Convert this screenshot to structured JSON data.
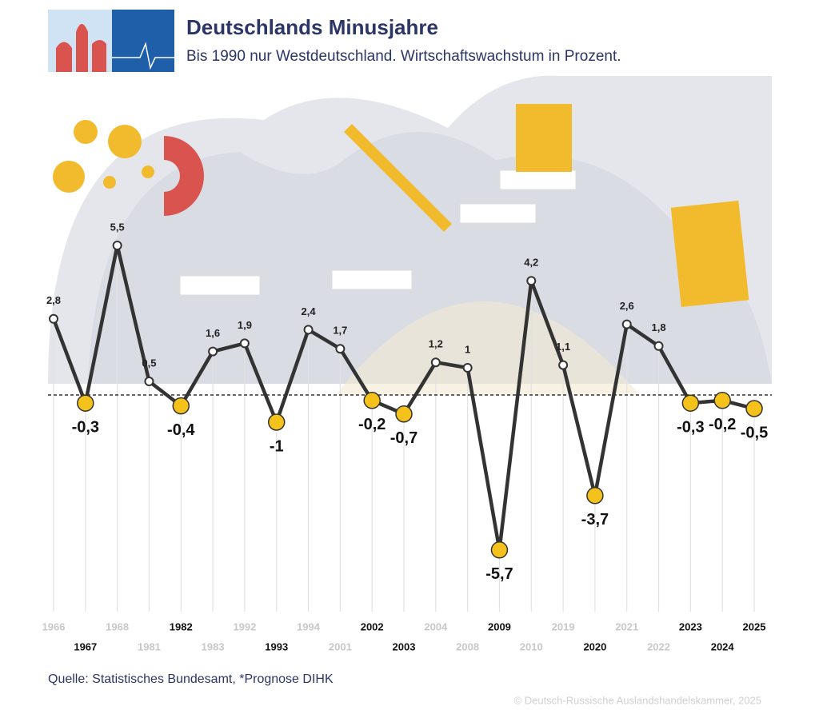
{
  "chart_data": {
    "type": "line",
    "title": "Deutschlands Minusjahre",
    "subtitle": "Bis 1990 nur Westdeutschland. Wirtschaftswachstum in Prozent.",
    "source": "Quelle: Statistisches Bundesamt, *Prognose DIHK",
    "copyright": "© Deutsch-Russische Auslandshandelskammer, 2025",
    "categories": [
      "1966",
      "1967",
      "1968",
      "1981",
      "1982",
      "1983",
      "1992",
      "1993",
      "1994",
      "2001",
      "2002",
      "2003",
      "2004",
      "2008",
      "2009",
      "2010",
      "2019",
      "2020",
      "2021",
      "2022",
      "2023",
      "2024",
      "2025"
    ],
    "values": [
      2.8,
      -0.3,
      5.5,
      0.5,
      -0.4,
      1.6,
      1.9,
      -1,
      2.4,
      1.7,
      -0.2,
      -0.7,
      1.2,
      1,
      -5.7,
      4.2,
      1.1,
      -3.7,
      2.6,
      1.8,
      -0.3,
      -0.2,
      -0.5
    ],
    "value_labels": [
      "2,8",
      "-0,3",
      "5,5",
      "0,5",
      "-0,4",
      "1,6",
      "1,9",
      "-1",
      "2,4",
      "1,7",
      "-0,2",
      "-0,7",
      "1,2",
      "1",
      "-5,7",
      "4,2",
      "1,1",
      "-3,7",
      "2,6",
      "1,8",
      "-0,3",
      "-0,2",
      "-0,5"
    ],
    "color": "#333333",
    "negative_color": "#f5c21b",
    "ylim": [
      -7,
      7
    ]
  }
}
